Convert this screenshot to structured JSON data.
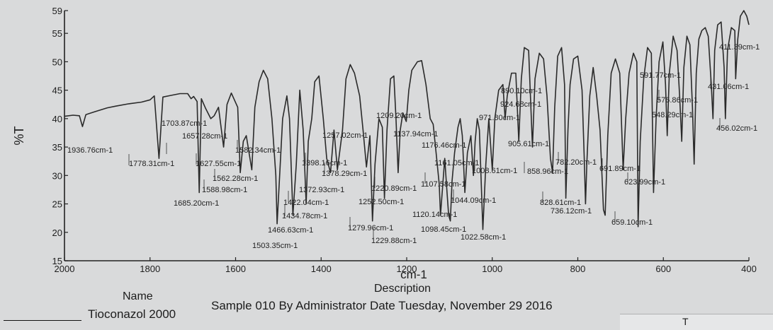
{
  "chart_data": {
    "type": "line",
    "xlabel": "cm-1",
    "ylabel": "%T",
    "xlim": [
      2000,
      400
    ],
    "ylim": [
      15,
      59
    ],
    "x_ticks": [
      2000,
      1800,
      1600,
      1400,
      1200,
      1000,
      800,
      600,
      400
    ],
    "y_ticks": [
      15,
      20,
      25,
      30,
      35,
      40,
      45,
      50,
      55,
      59
    ],
    "grid": false,
    "line_color": "#2a2a2a",
    "series": [
      {
        "name": "Tioconazol 2000",
        "points": [
          [
            2000,
            40.4
          ],
          [
            1980,
            40.6
          ],
          [
            1965,
            40.5
          ],
          [
            1958,
            38.6
          ],
          [
            1950,
            40.7
          ],
          [
            1930,
            41.2
          ],
          [
            1900,
            41.9
          ],
          [
            1880,
            42.2
          ],
          [
            1850,
            42.6
          ],
          [
            1820,
            42.9
          ],
          [
            1800,
            43.3
          ],
          [
            1790,
            44.0
          ],
          [
            1779,
            33.0
          ],
          [
            1770,
            43.8
          ],
          [
            1750,
            44.1
          ],
          [
            1730,
            44.4
          ],
          [
            1712,
            44.4
          ],
          [
            1704,
            43.5
          ],
          [
            1698,
            43.9
          ],
          [
            1690,
            43.0
          ],
          [
            1685,
            27.0
          ],
          [
            1680,
            43.5
          ],
          [
            1670,
            41.8
          ],
          [
            1658,
            40.0
          ],
          [
            1650,
            40.5
          ],
          [
            1640,
            42.0
          ],
          [
            1628,
            35.0
          ],
          [
            1620,
            42.5
          ],
          [
            1610,
            44.5
          ],
          [
            1595,
            42.0
          ],
          [
            1589,
            30.5
          ],
          [
            1582,
            36.0
          ],
          [
            1575,
            37.0
          ],
          [
            1562,
            31.0
          ],
          [
            1555,
            42.0
          ],
          [
            1545,
            46.5
          ],
          [
            1535,
            48.5
          ],
          [
            1525,
            47.0
          ],
          [
            1515,
            40.0
          ],
          [
            1506,
            30.0
          ],
          [
            1503,
            21.5
          ],
          [
            1497,
            30.0
          ],
          [
            1490,
            40.0
          ],
          [
            1480,
            44.0
          ],
          [
            1474,
            40.0
          ],
          [
            1466,
            23.0
          ],
          [
            1458,
            32.0
          ],
          [
            1450,
            45.0
          ],
          [
            1442,
            38.0
          ],
          [
            1435,
            25.0
          ],
          [
            1430,
            36.0
          ],
          [
            1422,
            40.0
          ],
          [
            1415,
            46.5
          ],
          [
            1405,
            47.5
          ],
          [
            1395,
            40.0
          ],
          [
            1387,
            33.0
          ],
          [
            1378,
            30.5
          ],
          [
            1370,
            38.0
          ],
          [
            1362,
            31.0
          ],
          [
            1350,
            38.0
          ],
          [
            1342,
            47.0
          ],
          [
            1332,
            49.5
          ],
          [
            1322,
            48.0
          ],
          [
            1310,
            44.0
          ],
          [
            1302,
            38.0
          ],
          [
            1294,
            31.5
          ],
          [
            1286,
            37.0
          ],
          [
            1280,
            22.0
          ],
          [
            1274,
            32.0
          ],
          [
            1265,
            40.0
          ],
          [
            1257,
            38.5
          ],
          [
            1252,
            26.0
          ],
          [
            1246,
            38.0
          ],
          [
            1238,
            47.0
          ],
          [
            1230,
            47.5
          ],
          [
            1225,
            40.0
          ],
          [
            1220,
            30.5
          ],
          [
            1215,
            38.0
          ],
          [
            1209,
            41.0
          ],
          [
            1201,
            39.5
          ],
          [
            1195,
            45.0
          ],
          [
            1188,
            48.5
          ],
          [
            1175,
            50.0
          ],
          [
            1165,
            50.2
          ],
          [
            1155,
            46.0
          ],
          [
            1145,
            40.0
          ],
          [
            1138,
            39.0
          ],
          [
            1130,
            33.0
          ],
          [
            1124,
            28.5
          ],
          [
            1121,
            23.0
          ],
          [
            1116,
            28.0
          ],
          [
            1111,
            33.0
          ],
          [
            1107,
            28.5
          ],
          [
            1102,
            23.0
          ],
          [
            1098,
            22.0
          ],
          [
            1094,
            29.0
          ],
          [
            1088,
            34.0
          ],
          [
            1080,
            38.5
          ],
          [
            1075,
            40.0
          ],
          [
            1070,
            37.0
          ],
          [
            1064,
            27.0
          ],
          [
            1058,
            34.0
          ],
          [
            1050,
            37.0
          ],
          [
            1044,
            30.0
          ],
          [
            1040,
            36.0
          ],
          [
            1035,
            40.0
          ],
          [
            1030,
            38.0
          ],
          [
            1022,
            20.5
          ],
          [
            1015,
            32.0
          ],
          [
            1008,
            40.0
          ],
          [
            1000,
            31.0
          ],
          [
            994,
            40.0
          ],
          [
            985,
            45.0
          ],
          [
            975,
            46.0
          ],
          [
            970,
            40.0
          ],
          [
            965,
            44.0
          ],
          [
            955,
            48.0
          ],
          [
            945,
            48.0
          ],
          [
            938,
            36.0
          ],
          [
            932,
            47.0
          ],
          [
            925,
            52.5
          ],
          [
            915,
            52.0
          ],
          [
            906,
            35.0
          ],
          [
            900,
            47.0
          ],
          [
            890,
            51.5
          ],
          [
            880,
            50.5
          ],
          [
            872,
            44.0
          ],
          [
            864,
            33.0
          ],
          [
            859,
            30.5
          ],
          [
            854,
            42.0
          ],
          [
            847,
            51.0
          ],
          [
            838,
            52.5
          ],
          [
            831,
            46.0
          ],
          [
            828,
            26.0
          ],
          [
            823,
            38.0
          ],
          [
            818,
            46.0
          ],
          [
            810,
            50.5
          ],
          [
            800,
            51.0
          ],
          [
            790,
            45.0
          ],
          [
            785,
            33.0
          ],
          [
            782,
            25.0
          ],
          [
            779,
            32.0
          ],
          [
            772,
            44.0
          ],
          [
            764,
            49.0
          ],
          [
            756,
            44.0
          ],
          [
            748,
            38.0
          ],
          [
            740,
            24.0
          ],
          [
            736,
            23.0
          ],
          [
            730,
            37.0
          ],
          [
            722,
            48.0
          ],
          [
            712,
            50.5
          ],
          [
            702,
            48.0
          ],
          [
            694,
            31.0
          ],
          [
            688,
            40.0
          ],
          [
            680,
            48.0
          ],
          [
            670,
            51.5
          ],
          [
            662,
            50.0
          ],
          [
            659,
            21.0
          ],
          [
            654,
            36.0
          ],
          [
            646,
            47.0
          ],
          [
            637,
            52.5
          ],
          [
            628,
            51.5
          ],
          [
            623,
            27.0
          ],
          [
            617,
            40.0
          ],
          [
            610,
            50.0
          ],
          [
            601,
            53.5
          ],
          [
            595,
            46.0
          ],
          [
            591,
            37.0
          ],
          [
            586,
            48.0
          ],
          [
            577,
            54.5
          ],
          [
            568,
            52.0
          ],
          [
            562,
            44.0
          ],
          [
            557,
            36.0
          ],
          [
            552,
            49.0
          ],
          [
            545,
            54.5
          ],
          [
            538,
            53.0
          ],
          [
            532,
            42.0
          ],
          [
            528,
            32.0
          ],
          [
            523,
            48.0
          ],
          [
            517,
            54.0
          ],
          [
            510,
            55.5
          ],
          [
            502,
            56.0
          ],
          [
            495,
            54.5
          ],
          [
            488,
            46.0
          ],
          [
            484,
            40.0
          ],
          [
            480,
            52.0
          ],
          [
            473,
            56.5
          ],
          [
            465,
            57.0
          ],
          [
            458,
            49.0
          ],
          [
            455,
            40.0
          ],
          [
            450,
            52.0
          ],
          [
            441,
            56.0
          ],
          [
            433,
            55.5
          ],
          [
            431,
            47.0
          ],
          [
            426,
            54.0
          ],
          [
            420,
            58.0
          ],
          [
            412,
            59.0
          ],
          [
            405,
            58.0
          ],
          [
            400,
            56.5
          ]
        ]
      }
    ],
    "annotations": [
      "1936.76cm-1",
      "1778.31cm-1",
      "1703.87cm-1",
      "1657.28cm-1",
      "1685.20cm-1",
      "1627.55cm-1",
      "1588.98cm-1",
      "1562.28cm-1",
      "1582.34cm-1",
      "1503.35cm-1",
      "1466.63cm-1",
      "1434.78cm-1",
      "1422.04cm-1",
      "1398.16cm-1",
      "1378.29cm-1",
      "1372.93cm-1",
      "1279.96cm-1",
      "1252.50cm-1",
      "1257.02cm-1",
      "1229.88cm-1",
      "1220.89cm-1",
      "1209.20cm-1",
      "1137.94cm-1",
      "1176.46cm-1",
      "1161.05cm-1",
      "1107.58cm-1",
      "1120.14cm-1",
      "1098.45cm-1",
      "1044.09cm-1",
      "1022.58cm-1",
      "1008.61cm-1",
      "971.80cm-1",
      "924.68cm-1",
      "890.10cm-1",
      "905.61cm-1",
      "858.96cm-1",
      "828.61cm-1",
      "782.20cm-1",
      "736.12cm-1",
      "691.89cm-1",
      "659.10cm-1",
      "623.99cm-1",
      "591.77cm-1",
      "576.86cm-1",
      "548.29cm-1",
      "431.06cm-1",
      "456.02cm-1",
      "411.39cm-1"
    ]
  },
  "legend": {
    "name_header": "Name",
    "description_header": "Description",
    "entry_name": "Tioconazol 2000",
    "entry_description": "Sample 010 By Administrator Date Tuesday, November 29 2016",
    "caret": "T"
  }
}
